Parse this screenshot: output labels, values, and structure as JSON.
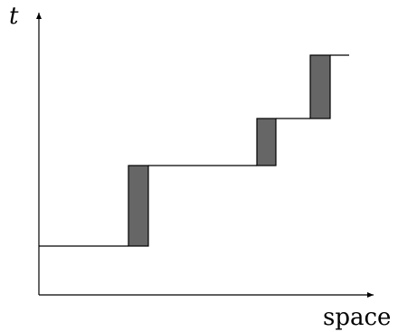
{
  "diagram": {
    "y_axis_label": "t",
    "x_axis_label": "space",
    "colors": {
      "line": "#000000",
      "block_fill": "#666666",
      "background": "#ffffff"
    },
    "segments": [
      {
        "kind": "horizontal",
        "level": 1
      },
      {
        "kind": "block",
        "from_level": 1,
        "to_level": 2
      },
      {
        "kind": "horizontal",
        "level": 2
      },
      {
        "kind": "block",
        "from_level": 2,
        "to_level": 3
      },
      {
        "kind": "horizontal",
        "level": 3
      },
      {
        "kind": "block",
        "from_level": 3,
        "to_level": 4
      },
      {
        "kind": "horizontal",
        "level": 4
      }
    ]
  }
}
